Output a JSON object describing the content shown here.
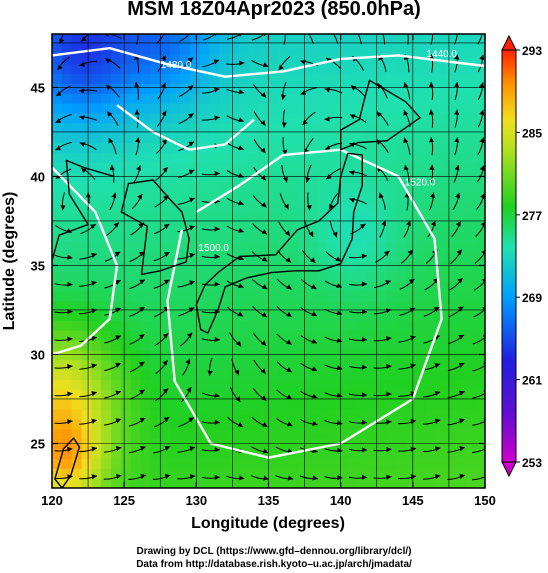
{
  "title": "MSM 18Z04Apr2023 (850.0hPa)",
  "footer": {
    "line1": "Drawing by DCL (https://www.gfd–dennou.org/library/dcl/)",
    "line2": "Data from http://database.rish.kyoto–u.ac.jp/arch/jmadata/"
  },
  "chart_data": {
    "type": "heatmap",
    "title": "MSM 18Z04Apr2023 (850.0hPa)",
    "xlabel": "Longitude (degrees)",
    "ylabel": "Latitude  (degrees)",
    "xlim": [
      120,
      150
    ],
    "ylim": [
      22.5,
      48
    ],
    "xticks": [
      120,
      125,
      130,
      135,
      140,
      145,
      150
    ],
    "xtick_labels": [
      "120",
      "125",
      "130",
      "135",
      "140",
      "145",
      "150"
    ],
    "yticks": [
      25,
      30,
      35,
      40,
      45
    ],
    "ytick_labels": [
      "25",
      "30",
      "35",
      "40",
      "45"
    ],
    "grid": true,
    "colorbar": {
      "ticks": [
        253,
        261,
        269,
        277,
        285,
        293
      ],
      "tick_labels": [
        "253",
        "261",
        "269",
        "277",
        "285",
        "293"
      ],
      "range": [
        253,
        293
      ],
      "colors": [
        "#cc00cc",
        "#2020e0",
        "#00a0ff",
        "#20e0b0",
        "#20d020",
        "#a8e020",
        "#f0e020",
        "#ff9000",
        "#ff2000"
      ]
    },
    "contour_labels": [
      {
        "text": "1480.0",
        "x": 128.6,
        "y": 46.1
      },
      {
        "text": "1440.0",
        "x": 147.0,
        "y": 46.7
      },
      {
        "text": "1520.0",
        "x": 145.5,
        "y": 39.5
      },
      {
        "text": "1500.0",
        "x": 131.2,
        "y": 35.8
      }
    ],
    "field": {
      "base": 277,
      "features": [
        {
          "x": 120.5,
          "y": 27.5,
          "dT": 9,
          "r": 4.0
        },
        {
          "x": 121.0,
          "y": 24.0,
          "dT": 7,
          "r": 2.5
        },
        {
          "x": 122.0,
          "y": 47.0,
          "dT": -8,
          "r": 4.0
        },
        {
          "x": 128.0,
          "y": 47.5,
          "dT": -5,
          "r": 3.5
        },
        {
          "x": 141.0,
          "y": 36.5,
          "dT": -2,
          "r": 3.0
        }
      ]
    }
  }
}
